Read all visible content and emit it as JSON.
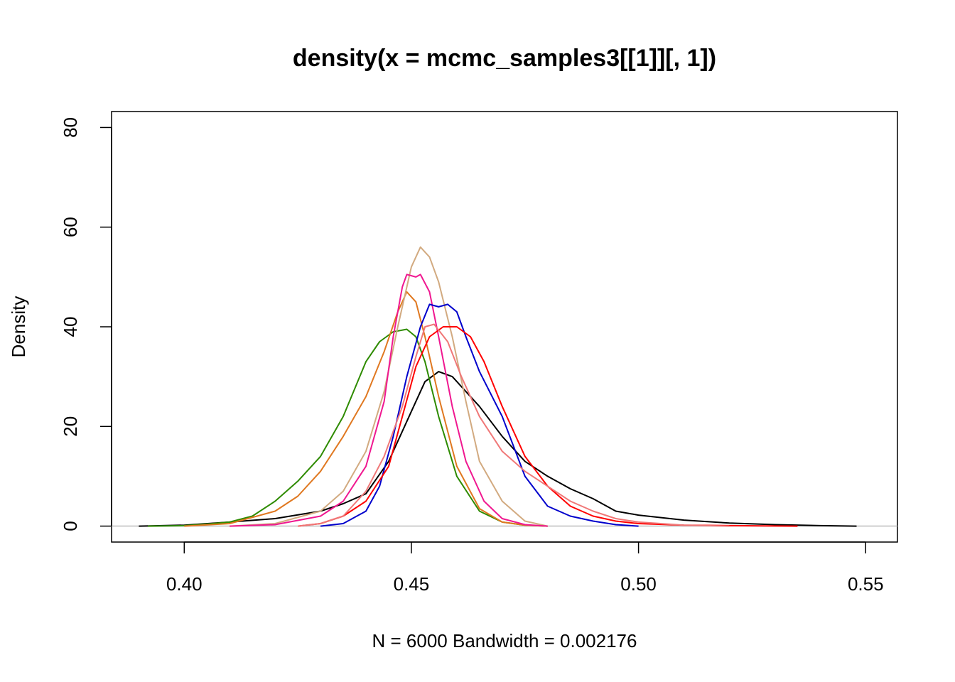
{
  "chart_data": {
    "type": "line",
    "title": "density(x = mcmc_samples3[[1]][, 1])",
    "xlabel": "N = 6000   Bandwidth = 0.002176",
    "ylabel": "Density",
    "xlim": [
      0.384,
      0.557
    ],
    "ylim": [
      -3.2,
      83.2
    ],
    "xticks": [
      0.4,
      0.45,
      0.5,
      0.55
    ],
    "xtick_labels": [
      "0.40",
      "0.45",
      "0.50",
      "0.55"
    ],
    "yticks": [
      0,
      20,
      40,
      60,
      80
    ],
    "ytick_labels": [
      "0",
      "20",
      "40",
      "60",
      "80"
    ],
    "grid": false,
    "legend": "none",
    "baseline": {
      "y": 0,
      "color": "#bebebe"
    },
    "series": [
      {
        "color": "#000000",
        "x": [
          0.39,
          0.4,
          0.41,
          0.42,
          0.43,
          0.435,
          0.44,
          0.445,
          0.45,
          0.453,
          0.456,
          0.459,
          0.462,
          0.465,
          0.47,
          0.475,
          0.48,
          0.485,
          0.49,
          0.495,
          0.5,
          0.51,
          0.52,
          0.53,
          0.54,
          0.548
        ],
        "y": [
          0,
          0.2,
          0.8,
          1.5,
          3,
          4.5,
          6.5,
          13,
          23,
          29,
          31,
          30,
          27,
          24,
          18,
          13,
          10,
          7.5,
          5.5,
          3,
          2.2,
          1.2,
          0.6,
          0.3,
          0.1,
          0
        ]
      },
      {
        "color": "#2e8b00",
        "x": [
          0.392,
          0.4,
          0.405,
          0.41,
          0.415,
          0.42,
          0.425,
          0.43,
          0.435,
          0.44,
          0.443,
          0.446,
          0.449,
          0.451,
          0.453,
          0.456,
          0.46,
          0.465,
          0.47,
          0.475,
          0.48
        ],
        "y": [
          0,
          0.1,
          0.4,
          0.8,
          2,
          5,
          9,
          14,
          22,
          33,
          37,
          39,
          39.5,
          38,
          33,
          22,
          10,
          3,
          0.8,
          0.2,
          0
        ]
      },
      {
        "color": "#e07820",
        "x": [
          0.4,
          0.41,
          0.42,
          0.425,
          0.43,
          0.435,
          0.44,
          0.444,
          0.447,
          0.449,
          0.451,
          0.453,
          0.456,
          0.46,
          0.465,
          0.47,
          0.475,
          0.48
        ],
        "y": [
          0,
          0.5,
          3,
          6,
          11,
          18,
          26,
          35,
          43,
          47,
          45,
          38,
          26,
          12,
          3.5,
          0.8,
          0.2,
          0
        ]
      },
      {
        "color": "#d2aa80",
        "x": [
          0.41,
          0.42,
          0.43,
          0.435,
          0.44,
          0.444,
          0.447,
          0.45,
          0.452,
          0.454,
          0.456,
          0.459,
          0.462,
          0.465,
          0.47,
          0.475,
          0.48
        ],
        "y": [
          0,
          0.5,
          3,
          7,
          15,
          27,
          40,
          52,
          56,
          54,
          49,
          38,
          25,
          13,
          5,
          1,
          0
        ]
      },
      {
        "color": "#f01890",
        "x": [
          0.41,
          0.42,
          0.43,
          0.435,
          0.44,
          0.444,
          0.446,
          0.448,
          0.449,
          0.451,
          0.452,
          0.454,
          0.456,
          0.459,
          0.462,
          0.466,
          0.47,
          0.475,
          0.48
        ],
        "y": [
          0,
          0.3,
          2,
          5,
          12,
          25,
          38,
          48,
          50.5,
          50,
          50.5,
          47,
          38,
          24,
          13,
          5,
          1.5,
          0.3,
          0
        ]
      },
      {
        "color": "#0000cc",
        "x": [
          0.43,
          0.435,
          0.44,
          0.443,
          0.446,
          0.449,
          0.452,
          0.454,
          0.456,
          0.458,
          0.46,
          0.462,
          0.465,
          0.47,
          0.475,
          0.48,
          0.485,
          0.49,
          0.495,
          0.5
        ],
        "y": [
          0,
          0.5,
          3,
          8,
          18,
          30,
          40,
          44.5,
          44,
          44.5,
          43,
          38,
          31,
          22,
          10,
          4,
          2,
          1,
          0.3,
          0
        ]
      },
      {
        "color": "#ff0000",
        "x": [
          0.425,
          0.43,
          0.435,
          0.44,
          0.445,
          0.448,
          0.451,
          0.454,
          0.457,
          0.46,
          0.463,
          0.466,
          0.47,
          0.475,
          0.48,
          0.485,
          0.49,
          0.495,
          0.5,
          0.51,
          0.52,
          0.535
        ],
        "y": [
          0,
          0.5,
          2,
          5,
          12,
          22,
          32,
          38,
          40,
          40,
          38,
          33,
          24,
          14,
          8,
          4,
          2,
          1,
          0.5,
          0.2,
          0.1,
          0
        ]
      },
      {
        "color": "#f07878",
        "x": [
          0.425,
          0.43,
          0.435,
          0.44,
          0.444,
          0.448,
          0.451,
          0.453,
          0.455,
          0.458,
          0.461,
          0.465,
          0.47,
          0.475,
          0.48,
          0.485,
          0.49,
          0.495,
          0.5,
          0.51,
          0.52
        ],
        "y": [
          0,
          0.5,
          2,
          7,
          14,
          24,
          34,
          40,
          40.5,
          37,
          30,
          22,
          15,
          11,
          8,
          5,
          3,
          1.5,
          0.8,
          0.2,
          0
        ]
      }
    ]
  }
}
